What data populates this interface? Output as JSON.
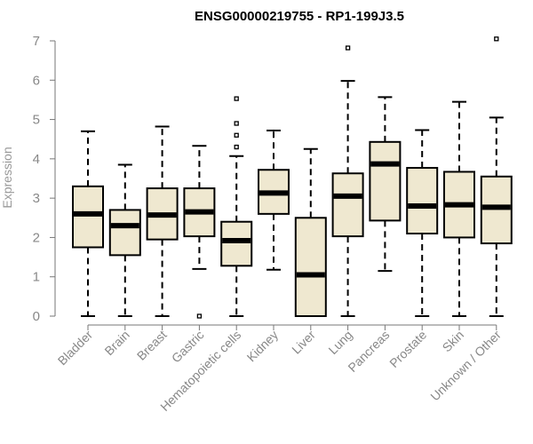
{
  "chart_data": {
    "type": "boxplot",
    "title": "ENSG00000219755 - RP1-199J3.5",
    "xlabel": "",
    "ylabel": "Expression",
    "ylim": [
      0,
      7
    ],
    "yticks": [
      "0",
      "1",
      "2",
      "3",
      "4",
      "5",
      "6",
      "7"
    ],
    "grid": false,
    "colors": {
      "box_fill": "#efe8d0",
      "box_stroke": "#000000",
      "axis": "#777777",
      "text": "#888888"
    },
    "categories": [
      "Bladder",
      "Brain",
      "Breast",
      "Gastric",
      "Hematopoietic cells",
      "Kidney",
      "Liver",
      "Lung",
      "Pancreas",
      "Prostate",
      "Skin",
      "Unknown / Other"
    ],
    "boxes": [
      {
        "name": "Bladder",
        "whisker_low": 0.0,
        "q1": 1.75,
        "median": 2.6,
        "q3": 3.3,
        "whisker_high": 4.7,
        "outliers": []
      },
      {
        "name": "Brain",
        "whisker_low": 0.0,
        "q1": 1.55,
        "median": 2.3,
        "q3": 2.7,
        "whisker_high": 3.85,
        "outliers": []
      },
      {
        "name": "Breast",
        "whisker_low": 0.0,
        "q1": 1.95,
        "median": 2.57,
        "q3": 3.25,
        "whisker_high": 4.82,
        "outliers": []
      },
      {
        "name": "Gastric",
        "whisker_low": 1.2,
        "q1": 2.03,
        "median": 2.65,
        "q3": 3.25,
        "whisker_high": 4.33,
        "outliers": [
          0.0
        ]
      },
      {
        "name": "Hematopoietic cells",
        "whisker_low": 0.0,
        "q1": 1.28,
        "median": 1.92,
        "q3": 2.4,
        "whisker_high": 4.07,
        "outliers": [
          4.3,
          4.6,
          4.9,
          5.53
        ]
      },
      {
        "name": "Kidney",
        "whisker_low": 1.18,
        "q1": 2.6,
        "median": 3.13,
        "q3": 3.72,
        "whisker_high": 4.72,
        "outliers": []
      },
      {
        "name": "Liver",
        "whisker_low": 0.0,
        "q1": 0.0,
        "median": 1.05,
        "q3": 2.5,
        "whisker_high": 4.25,
        "outliers": []
      },
      {
        "name": "Lung",
        "whisker_low": 0.0,
        "q1": 2.03,
        "median": 3.05,
        "q3": 3.63,
        "whisker_high": 5.98,
        "outliers": [
          6.82
        ]
      },
      {
        "name": "Pancreas",
        "whisker_low": 1.15,
        "q1": 2.43,
        "median": 3.87,
        "q3": 4.43,
        "whisker_high": 5.57,
        "outliers": []
      },
      {
        "name": "Prostate",
        "whisker_low": 0.0,
        "q1": 2.1,
        "median": 2.8,
        "q3": 3.77,
        "whisker_high": 4.73,
        "outliers": []
      },
      {
        "name": "Skin",
        "whisker_low": 0.0,
        "q1": 2.0,
        "median": 2.83,
        "q3": 3.67,
        "whisker_high": 5.45,
        "outliers": []
      },
      {
        "name": "Unknown / Other",
        "whisker_low": 0.0,
        "q1": 1.85,
        "median": 2.77,
        "q3": 3.55,
        "whisker_high": 5.05,
        "outliers": [
          7.05
        ]
      }
    ]
  }
}
